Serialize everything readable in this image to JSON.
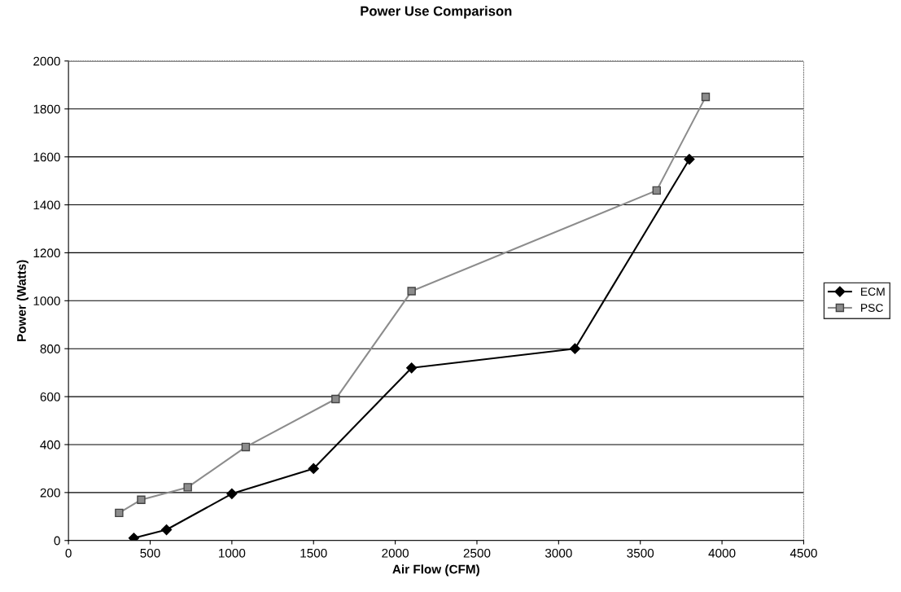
{
  "chart_data": {
    "type": "line",
    "title": "Power Use Comparison",
    "xlabel": "Air Flow (CFM)",
    "ylabel": "Power (Watts)",
    "xlim": [
      0,
      4500
    ],
    "xticks": [
      0,
      500,
      1000,
      1500,
      2000,
      2500,
      3000,
      3500,
      4000,
      4500
    ],
    "ylim": [
      0,
      2000
    ],
    "yticks": [
      0,
      200,
      400,
      600,
      800,
      1000,
      1200,
      1400,
      1600,
      1800,
      2000
    ],
    "grid": "y",
    "legend": "right",
    "series": [
      {
        "name": "ECM",
        "color": "#000000",
        "marker": "diamond",
        "x": [
          400,
          600,
          1000,
          1500,
          2100,
          3100,
          3800
        ],
        "values": [
          10,
          45,
          195,
          300,
          720,
          800,
          1590
        ]
      },
      {
        "name": "PSC",
        "color": "#8c8c8c",
        "marker": "square",
        "x": [
          310,
          445,
          730,
          1085,
          1635,
          2100,
          3600,
          3900
        ],
        "values": [
          115,
          170,
          222,
          390,
          590,
          1040,
          1460,
          1850
        ]
      }
    ]
  }
}
